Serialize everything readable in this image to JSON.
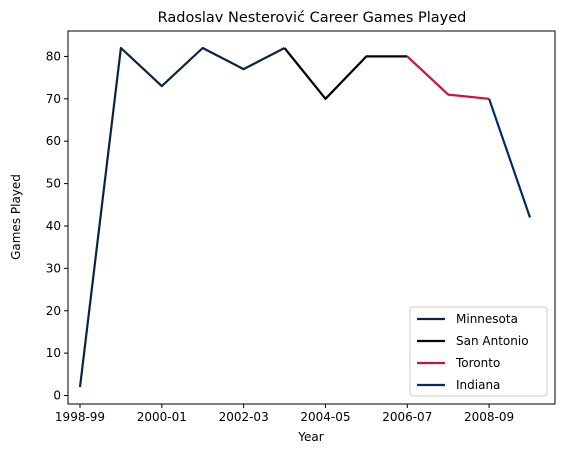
{
  "chart_data": {
    "type": "line",
    "title": "Radoslav Nesterović Career Games Played",
    "xlabel": "Year",
    "ylabel": "Games Played",
    "ylim": [
      -2,
      86
    ],
    "yticks": [
      0,
      10,
      20,
      30,
      40,
      50,
      60,
      70,
      80
    ],
    "x_tick_labels": [
      "1998-99",
      "2000-01",
      "2002-03",
      "2004-05",
      "2006-07",
      "2008-09"
    ],
    "seasons": [
      "1998-99",
      "1999-00",
      "2000-01",
      "2001-02",
      "2002-03",
      "2003-04",
      "2004-05",
      "2005-06",
      "2006-07",
      "2007-08",
      "2008-09",
      "2009-10"
    ],
    "legend_position": "lower-right",
    "grid": false,
    "series": [
      {
        "name": "Minnesota",
        "color": "#0C2340",
        "x": [
          "1998-99",
          "1999-00",
          "2000-01",
          "2001-02",
          "2002-03",
          "2003-04"
        ],
        "values": [
          2,
          82,
          73,
          82,
          77,
          82
        ]
      },
      {
        "name": "San Antonio",
        "color": "#000000",
        "x": [
          "2003-04",
          "2004-05",
          "2005-06",
          "2006-07"
        ],
        "values": [
          82,
          70,
          80,
          80
        ]
      },
      {
        "name": "Toronto",
        "color": "#CE1141",
        "x": [
          "2006-07",
          "2007-08",
          "2008-09"
        ],
        "values": [
          80,
          71,
          70
        ]
      },
      {
        "name": "Indiana",
        "color": "#002D62",
        "x": [
          "2008-09",
          "2009-10"
        ],
        "values": [
          70,
          42
        ]
      }
    ]
  }
}
